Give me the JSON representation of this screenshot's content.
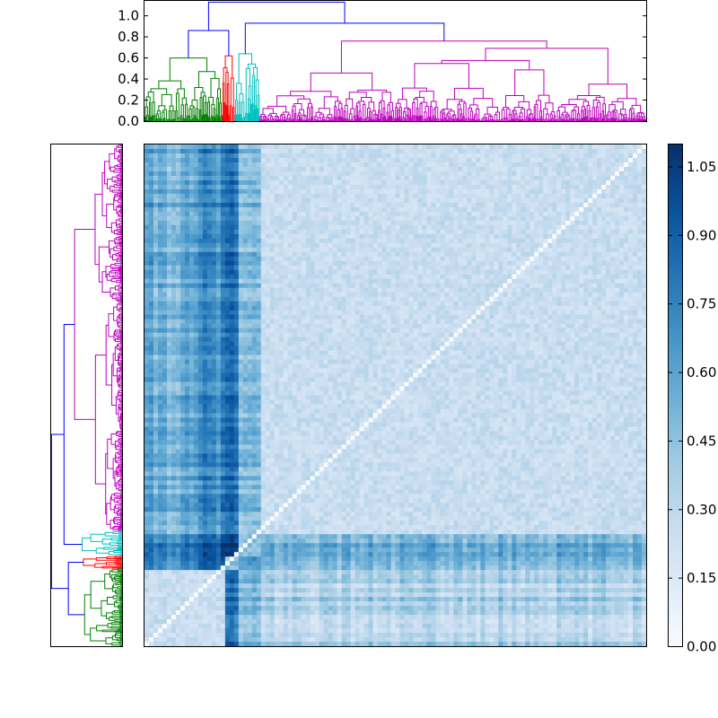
{
  "chart_data": [
    {
      "type": "dendrogram",
      "orientation": "top",
      "title": "",
      "xlabel": "",
      "ylabel": "",
      "ylim": [
        0.0,
        1.15
      ],
      "yticks": [
        "0.0",
        "0.2",
        "0.4",
        "0.6",
        "0.8",
        "1.0"
      ],
      "clusters": [
        {
          "color": "#008000",
          "leaf_range": [
            0.0,
            0.155
          ],
          "merge_height": 0.6
        },
        {
          "color": "#ff0000",
          "leaf_range": [
            0.155,
            0.18
          ],
          "merge_height": 0.62
        },
        {
          "color": "#00bfbf",
          "leaf_range": [
            0.18,
            0.23
          ],
          "merge_height": 0.64
        },
        {
          "color": "#bf00bf",
          "leaf_range": [
            0.23,
            1.0
          ],
          "merge_height": 0.76
        }
      ],
      "link_color_above_threshold": "#0000ff",
      "top_merges": [
        0.86,
        0.93,
        1.13
      ]
    },
    {
      "type": "dendrogram",
      "orientation": "left",
      "title": "",
      "clusters": [
        {
          "color": "#bf00bf",
          "share": 0.77
        },
        {
          "color": "#00bfbf",
          "share": 0.05
        },
        {
          "color": "#ff0000",
          "share": 0.025
        },
        {
          "color": "#008000",
          "share": 0.155
        }
      ],
      "link_color_above_threshold": "#0000ff"
    },
    {
      "type": "heatmap",
      "title": "",
      "colormap": "Blues",
      "value_range": [
        0.0,
        1.1
      ],
      "diagonal_value": 0.0,
      "description_of_structure": [],
      "colorbar": {
        "ticks": [
          "0.00",
          "0.15",
          "0.30",
          "0.45",
          "0.60",
          "0.75",
          "0.90",
          "1.05"
        ],
        "tick_values": [
          0.0,
          0.15,
          0.3,
          0.45,
          0.6,
          0.75,
          0.9,
          1.05
        ],
        "range": [
          0.0,
          1.1
        ]
      },
      "blocks": [
        {
          "name": "magenta",
          "start": 0.0,
          "end": 0.77
        },
        {
          "name": "cyan",
          "start": 0.77,
          "end": 0.82
        },
        {
          "name": "red",
          "start": 0.82,
          "end": 0.845
        },
        {
          "name": "green",
          "start": 0.845,
          "end": 1.0
        }
      ]
    }
  ]
}
